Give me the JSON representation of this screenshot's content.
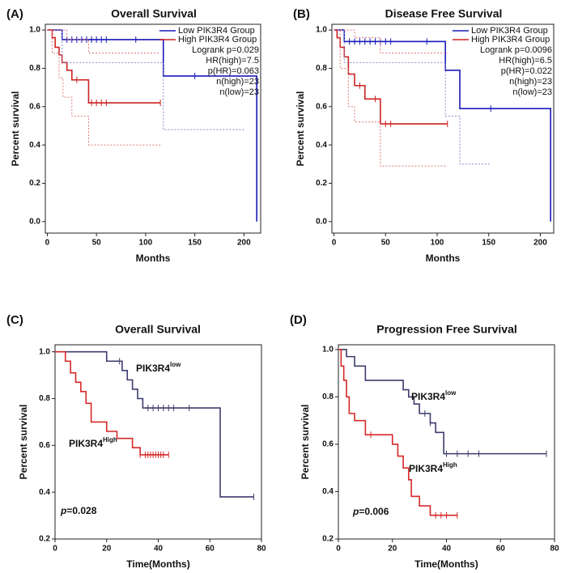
{
  "chart_data": [
    {
      "type": "line",
      "panel": "(A)",
      "title": "Overall Survival",
      "x_label": "Months",
      "y_label": "Percent survival",
      "xlim": [
        -2,
        217
      ],
      "ylim": [
        -0.06,
        1.03
      ],
      "xticks": [
        0,
        50,
        100,
        150,
        200
      ],
      "yticks": [
        {
          "value": 0,
          "label": "0.0"
        },
        0.2,
        0.4,
        0.6,
        0.8,
        {
          "value": 1,
          "label": "1.0"
        }
      ],
      "legend": "upper right",
      "stats": [
        "Logrank p=0.029",
        "HR(high)=7.5",
        "p(HR)=0.063",
        "n(high)=23",
        "n(low)=23"
      ],
      "series": [
        {
          "name": "Low PIK3R4 Group",
          "color": "#1a1ab8",
          "x": [
            0,
            15,
            118,
            213
          ],
          "values": [
            1,
            0.95,
            0.76,
            0
          ],
          "censored": [
            20,
            25,
            30,
            35,
            40,
            45,
            50,
            55,
            60,
            90,
            150
          ]
        },
        {
          "name": "High PIK3R4 Group",
          "color": "#cc2222",
          "x": [
            0,
            5,
            8,
            12,
            15,
            20,
            25,
            42,
            115
          ],
          "values": [
            1,
            0.96,
            0.91,
            0.87,
            0.83,
            0.79,
            0.74,
            0.62,
            0.62
          ],
          "censored": [
            30,
            45,
            50,
            55,
            60,
            115
          ]
        },
        {
          "style": "dotted",
          "color": "#8888cc",
          "x": [
            0,
            15,
            118,
            200
          ],
          "values": [
            1,
            0.83,
            0.48,
            0.48
          ]
        },
        {
          "style": "dotted",
          "color": "#dd7777",
          "x": [
            0,
            5,
            12,
            16,
            25,
            42,
            115
          ],
          "values": [
            1,
            0.88,
            0.75,
            0.65,
            0.55,
            0.4,
            0.4
          ]
        },
        {
          "style": "dotted",
          "color": "#dd7777",
          "x": [
            0,
            20,
            42,
            115
          ],
          "values": [
            1,
            0.95,
            0.88,
            0.88
          ]
        }
      ]
    },
    {
      "type": "line",
      "panel": "(B)",
      "title": "Disease Free Survival",
      "x_label": "Months",
      "y_label": "Percent survival",
      "xlim": [
        -2,
        213
      ],
      "ylim": [
        -0.06,
        1.03
      ],
      "xticks": [
        0,
        50,
        100,
        150,
        200
      ],
      "yticks": [
        {
          "value": 0,
          "label": "0.0"
        },
        0.2,
        0.4,
        0.6,
        0.8,
        {
          "value": 1,
          "label": "1.0"
        }
      ],
      "legend": "upper right",
      "stats": [
        "Logrank p=0.0096",
        "HR(high)=6.5",
        "p(HR)=0.022",
        "n(high)=23",
        "n(low)=23"
      ],
      "series": [
        {
          "name": "Low PIK3R4 Group",
          "color": "#1a1ab8",
          "x": [
            0,
            10,
            108,
            122,
            210
          ],
          "values": [
            1,
            0.94,
            0.79,
            0.59,
            0
          ],
          "censored": [
            15,
            20,
            25,
            30,
            35,
            40,
            45,
            50,
            55,
            90,
            152
          ]
        },
        {
          "name": "High PIK3R4 Group",
          "color": "#cc2222",
          "x": [
            0,
            3,
            6,
            10,
            14,
            20,
            30,
            45,
            110
          ],
          "values": [
            1,
            0.96,
            0.91,
            0.86,
            0.77,
            0.71,
            0.64,
            0.51,
            0.51
          ],
          "censored": [
            25,
            40,
            50,
            55,
            110
          ]
        },
        {
          "style": "dotted",
          "color": "#8888cc",
          "x": [
            0,
            10,
            108,
            122,
            152
          ],
          "values": [
            1,
            0.83,
            0.55,
            0.3,
            0.3
          ]
        },
        {
          "style": "dotted",
          "color": "#dd7777",
          "x": [
            0,
            6,
            14,
            20,
            45,
            110
          ],
          "values": [
            1,
            0.8,
            0.6,
            0.52,
            0.29,
            0.29
          ]
        },
        {
          "style": "dotted",
          "color": "#dd7777",
          "x": [
            0,
            20,
            45,
            110
          ],
          "values": [
            1,
            0.96,
            0.88,
            0.88
          ]
        }
      ]
    },
    {
      "type": "line",
      "panel": "(C)",
      "title": "Overall Survival",
      "x_label": "Time(Months)",
      "y_label": "Percent survival",
      "xlim": [
        0,
        80
      ],
      "ylim": [
        0.2,
        1.03
      ],
      "xticks": [
        0,
        20,
        40,
        60,
        80
      ],
      "yticks": [
        0.2,
        0.4,
        0.6,
        0.8,
        {
          "value": 1,
          "label": "1.0"
        }
      ],
      "p_label": "p",
      "p_value": "=0.028",
      "series": [
        {
          "name": "PIK3R4",
          "name_sup": "low",
          "color": "#3d3d6e",
          "x": [
            0,
            20,
            26,
            28,
            30,
            32,
            34,
            64,
            77
          ],
          "values": [
            1,
            0.96,
            0.92,
            0.88,
            0.84,
            0.8,
            0.76,
            0.38,
            0.38
          ],
          "censored": [
            25,
            36,
            38,
            40,
            42,
            44,
            46,
            52,
            77
          ]
        },
        {
          "name": "PIK3R4",
          "name_sup": "High",
          "color": "#d62828",
          "x": [
            0,
            4,
            6,
            8,
            10,
            12,
            14,
            20,
            24,
            30,
            33,
            44
          ],
          "values": [
            1,
            0.96,
            0.91,
            0.87,
            0.83,
            0.78,
            0.7,
            0.66,
            0.63,
            0.59,
            0.56,
            0.56
          ],
          "censored": [
            33,
            35,
            36,
            37,
            38,
            39,
            40,
            41,
            42,
            44
          ]
        }
      ]
    },
    {
      "type": "line",
      "panel": "(D)",
      "title": "Progression Free Survival",
      "x_label": "Time(Months)",
      "y_label": "Percent survival",
      "xlim": [
        0,
        80
      ],
      "ylim": [
        0.2,
        1.02
      ],
      "xticks": [
        0,
        20,
        40,
        60,
        80
      ],
      "yticks": [
        0.2,
        0.4,
        0.6,
        0.8,
        {
          "value": 1,
          "label": "1.0"
        }
      ],
      "p_label": "p",
      "p_value": "=0.006",
      "series": [
        {
          "name": "PIK3R4",
          "name_sup": "low",
          "color": "#3d3d6e",
          "x": [
            0,
            3,
            6,
            10,
            20,
            24,
            26,
            28,
            30,
            34,
            36,
            39,
            77
          ],
          "values": [
            1,
            0.97,
            0.93,
            0.87,
            0.87,
            0.83,
            0.8,
            0.77,
            0.73,
            0.69,
            0.65,
            0.56,
            0.56
          ],
          "censored": [
            32,
            34,
            40,
            44,
            48,
            52,
            77
          ]
        },
        {
          "name": "PIK3R4",
          "name_sup": "High",
          "color": "#d62828",
          "x": [
            0,
            1,
            2,
            3,
            4,
            6,
            10,
            20,
            22,
            24,
            26,
            27,
            30,
            34,
            44
          ],
          "values": [
            1,
            0.93,
            0.87,
            0.8,
            0.73,
            0.7,
            0.64,
            0.6,
            0.55,
            0.5,
            0.45,
            0.38,
            0.34,
            0.3,
            0.3
          ],
          "censored": [
            12,
            36,
            38,
            40,
            44
          ]
        }
      ]
    }
  ]
}
